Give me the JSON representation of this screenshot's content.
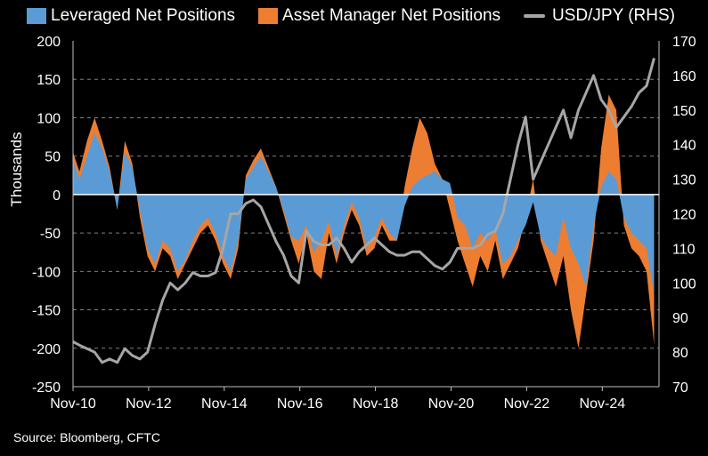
{
  "source_text": "Source: Bloomberg, CFTC",
  "chart_data": {
    "type": "area",
    "legend_position": "top",
    "grid": true,
    "ylabel": "Thousands",
    "y2label": "",
    "ylim": [
      -250,
      200
    ],
    "y2lim": [
      70,
      170
    ],
    "yticks": [
      -250,
      -200,
      -150,
      -100,
      -50,
      0,
      50,
      100,
      150,
      200
    ],
    "y2ticks": [
      70,
      80,
      90,
      100,
      110,
      120,
      130,
      140,
      150,
      160,
      170
    ],
    "xlim": [
      2010.83,
      2026.33
    ],
    "xtick_labels": [
      "Nov-10",
      "Nov-12",
      "Nov-14",
      "Nov-16",
      "Nov-18",
      "Nov-20",
      "Nov-22",
      "Nov-24"
    ],
    "xtick_values": [
      2010.83,
      2012.83,
      2014.83,
      2016.83,
      2018.83,
      2020.83,
      2022.83,
      2024.83
    ],
    "colors": {
      "leveraged": "#5b9bd5",
      "asset_manager": "#ed7d31",
      "usdjpy": "#a6a6a6",
      "zero_line": "#ffffff",
      "grid": "#7f7f7f"
    },
    "series": [
      {
        "name": "Leveraged Net Positions",
        "axis": "left",
        "style": "area",
        "x": [
          2010.83,
          2011.0,
          2011.2,
          2011.4,
          2011.6,
          2011.8,
          2012.0,
          2012.2,
          2012.4,
          2012.6,
          2012.8,
          2013.0,
          2013.2,
          2013.4,
          2013.6,
          2013.8,
          2014.0,
          2014.2,
          2014.4,
          2014.6,
          2014.8,
          2015.0,
          2015.2,
          2015.4,
          2015.6,
          2015.8,
          2016.0,
          2016.2,
          2016.4,
          2016.6,
          2016.8,
          2017.0,
          2017.2,
          2017.4,
          2017.6,
          2017.8,
          2018.0,
          2018.2,
          2018.4,
          2018.6,
          2018.8,
          2019.0,
          2019.2,
          2019.4,
          2019.6,
          2019.8,
          2020.0,
          2020.2,
          2020.4,
          2020.6,
          2020.8,
          2021.0,
          2021.2,
          2021.4,
          2021.6,
          2021.8,
          2022.0,
          2022.2,
          2022.4,
          2022.6,
          2022.8,
          2023.0,
          2023.2,
          2023.4,
          2023.6,
          2023.8,
          2024.0,
          2024.2,
          2024.4,
          2024.6,
          2024.8,
          2025.0,
          2025.2,
          2025.4,
          2025.6,
          2025.8,
          2026.0,
          2026.2
        ],
        "values": [
          45,
          20,
          50,
          80,
          60,
          30,
          -20,
          55,
          35,
          -20,
          -70,
          -90,
          -60,
          -70,
          -100,
          -85,
          -60,
          -40,
          -30,
          -50,
          -80,
          -100,
          -60,
          20,
          35,
          50,
          30,
          10,
          -20,
          -55,
          -60,
          -40,
          -75,
          -60,
          -35,
          -80,
          -40,
          -10,
          -30,
          -70,
          -55,
          -30,
          -50,
          -60,
          -15,
          10,
          20,
          25,
          30,
          20,
          15,
          -30,
          -40,
          -70,
          -50,
          -60,
          -45,
          -90,
          -80,
          -60,
          -40,
          -10,
          -55,
          -70,
          -80,
          -30,
          -70,
          -90,
          -120,
          -40,
          10,
          30,
          20,
          -30,
          -50,
          -60,
          -70,
          -130
        ]
      },
      {
        "name": "Asset Manager Net Positions",
        "axis": "left",
        "style": "area",
        "x": [
          2010.83,
          2011.0,
          2011.2,
          2011.4,
          2011.6,
          2011.8,
          2012.0,
          2012.2,
          2012.4,
          2012.6,
          2012.8,
          2013.0,
          2013.2,
          2013.4,
          2013.6,
          2013.8,
          2014.0,
          2014.2,
          2014.4,
          2014.6,
          2014.8,
          2015.0,
          2015.2,
          2015.4,
          2015.6,
          2015.8,
          2016.0,
          2016.2,
          2016.4,
          2016.6,
          2016.8,
          2017.0,
          2017.2,
          2017.4,
          2017.6,
          2017.8,
          2018.0,
          2018.2,
          2018.4,
          2018.6,
          2018.8,
          2019.0,
          2019.2,
          2019.4,
          2019.6,
          2019.8,
          2020.0,
          2020.2,
          2020.4,
          2020.6,
          2020.8,
          2021.0,
          2021.2,
          2021.4,
          2021.6,
          2021.8,
          2022.0,
          2022.2,
          2022.4,
          2022.6,
          2022.8,
          2023.0,
          2023.2,
          2023.4,
          2023.6,
          2023.8,
          2024.0,
          2024.2,
          2024.4,
          2024.6,
          2024.8,
          2025.0,
          2025.2,
          2025.4,
          2025.6,
          2025.8,
          2026.0,
          2026.2
        ],
        "values": [
          55,
          30,
          70,
          100,
          70,
          35,
          -20,
          70,
          40,
          -30,
          -80,
          -100,
          -70,
          -80,
          -110,
          -90,
          -70,
          -50,
          -40,
          -60,
          -90,
          -110,
          -70,
          25,
          45,
          60,
          35,
          10,
          -25,
          -60,
          -90,
          -50,
          -100,
          -110,
          -50,
          -90,
          -50,
          -20,
          -40,
          -80,
          -70,
          -40,
          -60,
          -60,
          10,
          60,
          100,
          80,
          40,
          20,
          -20,
          -60,
          -90,
          -120,
          -80,
          -100,
          -60,
          -110,
          -90,
          -70,
          -30,
          20,
          -60,
          -90,
          -120,
          -80,
          -150,
          -200,
          -130,
          -60,
          60,
          130,
          110,
          -40,
          -70,
          -80,
          -100,
          -195
        ]
      },
      {
        "name": "USD/JPY (RHS)",
        "axis": "right",
        "style": "line",
        "x": [
          2010.83,
          2011.0,
          2011.2,
          2011.4,
          2011.6,
          2011.8,
          2012.0,
          2012.2,
          2012.4,
          2012.6,
          2012.8,
          2013.0,
          2013.2,
          2013.4,
          2013.6,
          2013.8,
          2014.0,
          2014.2,
          2014.4,
          2014.6,
          2014.8,
          2015.0,
          2015.2,
          2015.4,
          2015.6,
          2015.8,
          2016.0,
          2016.2,
          2016.4,
          2016.6,
          2016.8,
          2017.0,
          2017.2,
          2017.4,
          2017.6,
          2017.8,
          2018.0,
          2018.2,
          2018.4,
          2018.6,
          2018.8,
          2019.0,
          2019.2,
          2019.4,
          2019.6,
          2019.8,
          2020.0,
          2020.2,
          2020.4,
          2020.6,
          2020.8,
          2021.0,
          2021.2,
          2021.4,
          2021.6,
          2021.8,
          2022.0,
          2022.2,
          2022.4,
          2022.6,
          2022.8,
          2023.0,
          2023.2,
          2023.4,
          2023.6,
          2023.8,
          2024.0,
          2024.2,
          2024.4,
          2024.6,
          2024.8,
          2025.0,
          2025.2,
          2025.4,
          2025.6,
          2025.8,
          2026.0,
          2026.2
        ],
        "values": [
          83,
          82,
          81,
          80,
          77,
          78,
          77,
          81,
          79,
          78,
          80,
          88,
          95,
          100,
          98,
          100,
          103,
          102,
          102,
          103,
          110,
          120,
          120,
          123,
          124,
          122,
          117,
          112,
          108,
          102,
          100,
          115,
          112,
          111,
          111,
          113,
          110,
          106,
          109,
          111,
          113,
          111,
          109,
          108,
          108,
          109,
          109,
          107,
          105,
          104,
          106,
          110,
          110,
          110,
          111,
          114,
          115,
          120,
          130,
          140,
          148,
          130,
          135,
          140,
          145,
          150,
          142,
          150,
          155,
          160,
          153,
          150,
          145,
          148,
          151,
          155,
          157,
          165
        ]
      }
    ]
  }
}
